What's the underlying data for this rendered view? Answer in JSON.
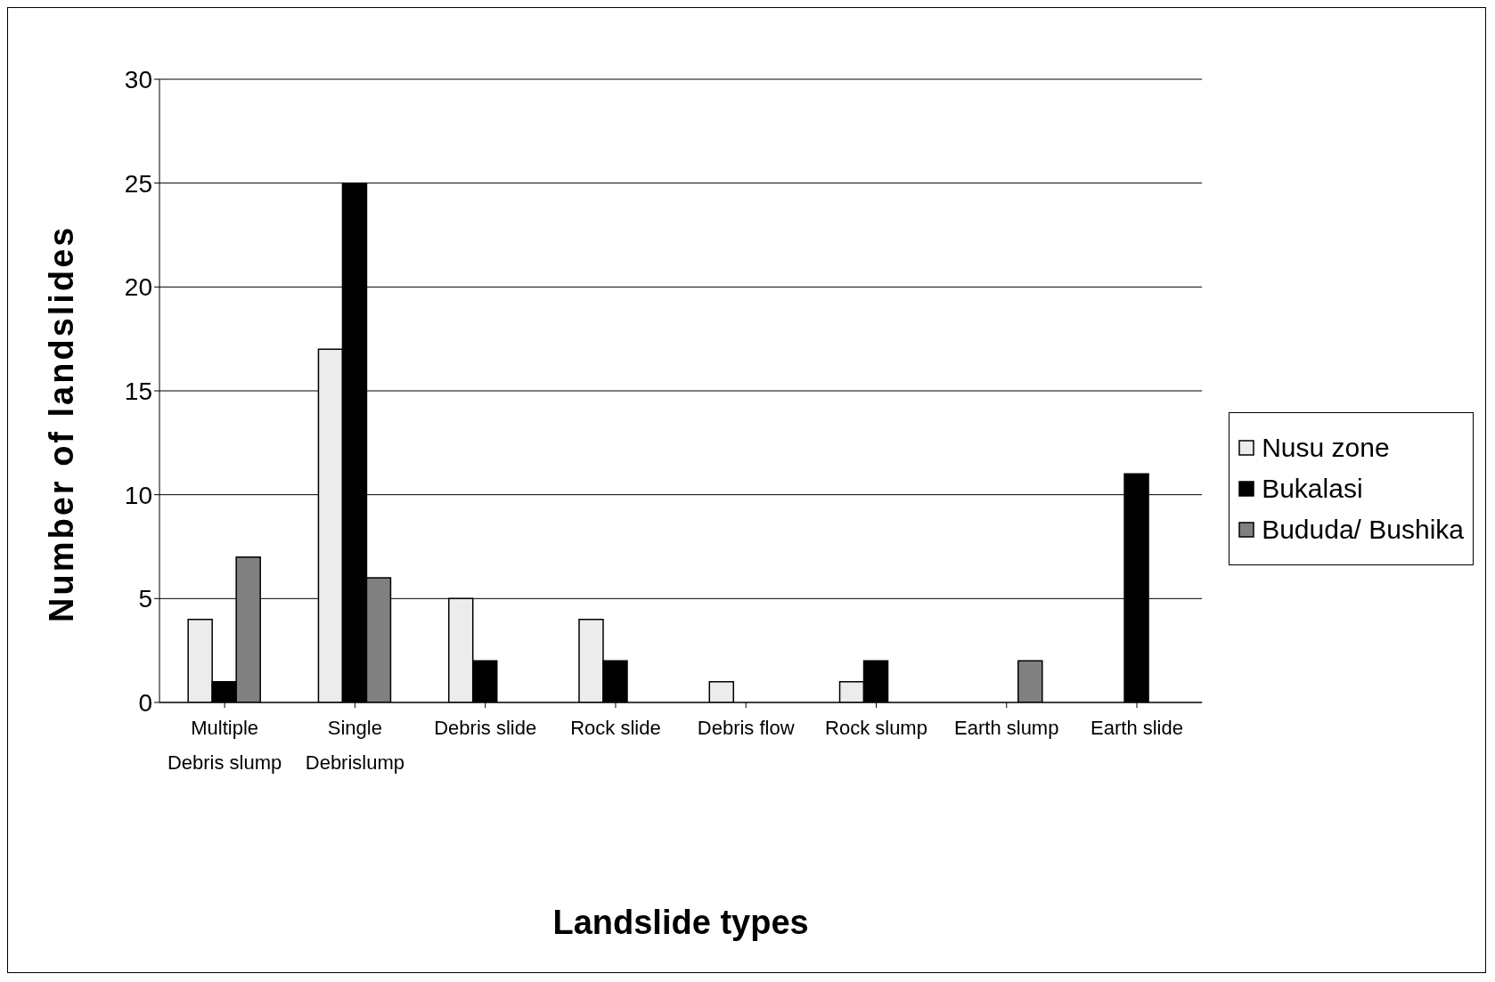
{
  "chart_data": {
    "type": "bar",
    "xlabel": "Landslide types",
    "ylabel": "Number of landslides",
    "categories": [
      "Multiple Debris slump",
      "Single Debrislump",
      "Debris slide",
      "Rock slide",
      "Debris flow",
      "Rock slump",
      "Earth slump",
      "Earth slide"
    ],
    "series": [
      {
        "name": "Nusu zone",
        "color": "#ececec",
        "values": [
          4,
          17,
          5,
          4,
          1,
          1,
          0,
          0
        ]
      },
      {
        "name": "Bukalasi",
        "color": "#000000",
        "values": [
          1,
          25,
          2,
          2,
          0,
          2,
          0,
          11
        ]
      },
      {
        "name": "Bududa/ Bushika",
        "color": "#808080",
        "values": [
          7,
          6,
          0,
          0,
          0,
          0,
          2,
          0
        ]
      }
    ],
    "ylim": [
      0,
      30
    ],
    "yticks": [
      0,
      5,
      10,
      15,
      20,
      25,
      30
    ],
    "grid": "y",
    "legend": "right"
  }
}
